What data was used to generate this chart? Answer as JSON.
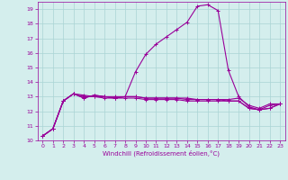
{
  "title": "",
  "xlabel": "Windchill (Refroidissement éolien,°C)",
  "ylabel": "",
  "xlim": [
    -0.5,
    23.5
  ],
  "ylim": [
    10,
    19.5
  ],
  "yticks": [
    10,
    11,
    12,
    13,
    14,
    15,
    16,
    17,
    18,
    19
  ],
  "xticks": [
    0,
    1,
    2,
    3,
    4,
    5,
    6,
    7,
    8,
    9,
    10,
    11,
    12,
    13,
    14,
    15,
    16,
    17,
    18,
    19,
    20,
    21,
    22,
    23
  ],
  "background_color": "#d4eeed",
  "grid_color": "#aad4d4",
  "line_color": "#990099",
  "line_width": 0.8,
  "marker": "+",
  "marker_size": 3,
  "curves": [
    [
      10.3,
      10.8,
      12.7,
      13.2,
      12.9,
      13.1,
      13.0,
      12.9,
      13.0,
      14.7,
      15.9,
      16.6,
      17.1,
      17.6,
      18.1,
      19.2,
      19.3,
      18.9,
      14.8,
      13.0,
      12.3,
      12.1,
      12.2,
      12.5
    ],
    [
      10.3,
      10.8,
      12.7,
      13.2,
      12.9,
      13.1,
      13.0,
      12.9,
      13.0,
      13.0,
      12.9,
      12.9,
      12.9,
      12.9,
      12.9,
      12.8,
      12.8,
      12.8,
      12.7,
      12.7,
      12.2,
      12.1,
      12.4,
      12.5
    ],
    [
      10.3,
      10.8,
      12.7,
      13.2,
      13.0,
      13.0,
      12.9,
      12.9,
      12.9,
      12.9,
      12.8,
      12.8,
      12.8,
      12.8,
      12.7,
      12.7,
      12.7,
      12.7,
      12.7,
      12.7,
      12.2,
      12.1,
      12.2,
      12.5
    ],
    [
      10.3,
      10.8,
      12.7,
      13.2,
      13.1,
      13.0,
      13.0,
      13.0,
      13.0,
      13.0,
      12.9,
      12.9,
      12.9,
      12.9,
      12.8,
      12.8,
      12.8,
      12.8,
      12.8,
      12.9,
      12.4,
      12.2,
      12.5,
      12.5
    ]
  ]
}
